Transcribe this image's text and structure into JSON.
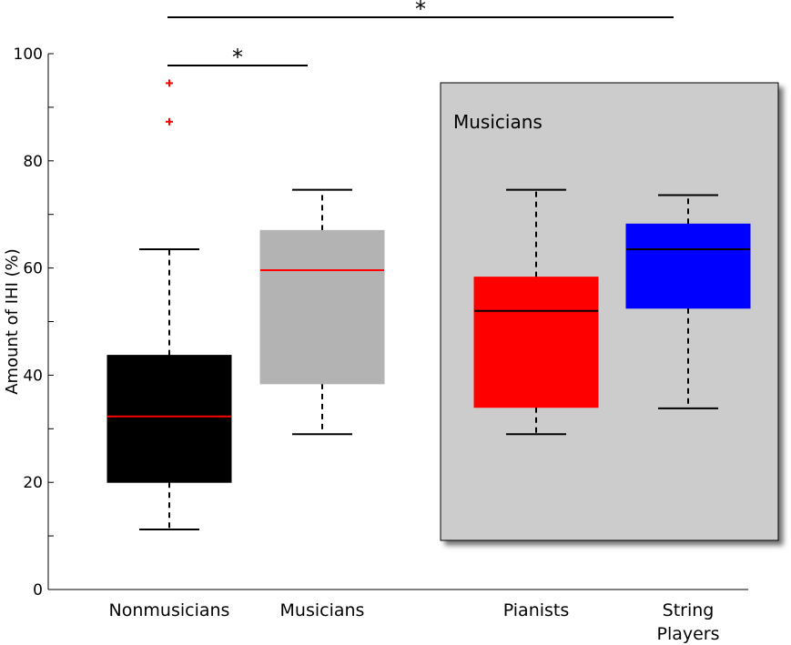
{
  "chart_data": {
    "type": "box",
    "ylabel": "Amount of IHI (%)",
    "xlabel": "",
    "ylim": [
      0,
      100
    ],
    "yticks": [
      "0",
      "20",
      "40",
      "60",
      "80",
      "100"
    ],
    "inset_label": "Musicians",
    "categories": [
      {
        "label": "Nonmusicians",
        "lines": [
          "Nonmusicians"
        ],
        "q1": 20,
        "median": 32.3,
        "q3": 43.7,
        "whisker_low": 11.2,
        "whisker_high": 63.5,
        "outliers": [
          87.3,
          94.5
        ],
        "fill": "#000000",
        "median_color": "#ff0000"
      },
      {
        "label": "Musicians",
        "lines": [
          "Musicians"
        ],
        "q1": 38.4,
        "median": 59.6,
        "q3": 67,
        "whisker_low": 29,
        "whisker_high": 74.6,
        "outliers": [],
        "fill": "#b3b3b3",
        "median_color": "#ff0000"
      },
      {
        "label": "Pianists",
        "lines": [
          "Pianists"
        ],
        "q1": 34,
        "median": 52,
        "q3": 58.3,
        "whisker_low": 29,
        "whisker_high": 74.6,
        "outliers": [],
        "fill": "#ff0000",
        "median_color": "#000000"
      },
      {
        "label": "String Players",
        "lines": [
          "String",
          "Players"
        ],
        "q1": 52.5,
        "median": 63.5,
        "q3": 68.2,
        "whisker_low": 33.8,
        "whisker_high": 73.6,
        "outliers": [],
        "fill": "#0000ff",
        "median_color": "#000000"
      }
    ],
    "significance": [
      {
        "from": "Nonmusicians",
        "to": "Musicians",
        "marker": "*"
      },
      {
        "from": "Nonmusicians",
        "to": "String Players",
        "marker": "*"
      }
    ],
    "colors": {
      "inset_bg": "#cccccc",
      "outlier": "#ff0000",
      "axis": "#000000"
    }
  }
}
